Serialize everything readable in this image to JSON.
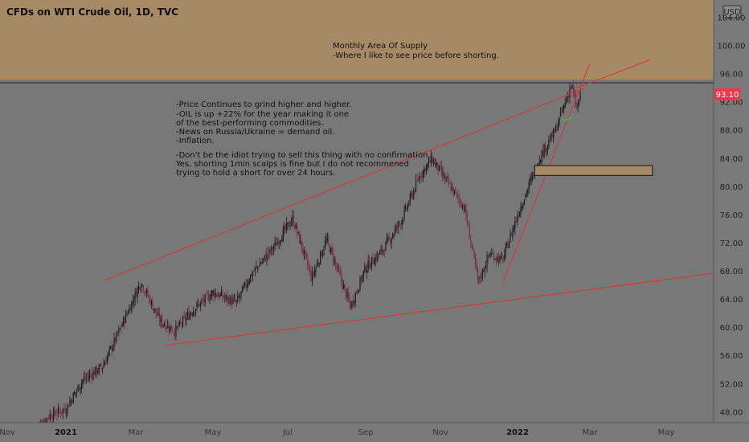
{
  "chart_title": "CFDs on WTI Crude Oil, 1D, TVC",
  "currency_label": "USD",
  "price_label": "93.10",
  "supply_zone": {
    "label_lines": [
      "Monthly Area Of Supply",
      "-Where I like to see price before shorting."
    ],
    "from_price": 95.2,
    "color": "#a68a66"
  },
  "demand_box": {
    "date_from": "2022-01-15",
    "date_to": "2022-04-20",
    "price_from": 81.6,
    "price_to": 83.0,
    "color": "#a68a66"
  },
  "notes": [
    "-Price Continues to grind higher and higher.",
    "-OIL is up +22% for the year making it one",
    "of the best-performing commodities.",
    "-News on Russia/Ukraine = demand oil.",
    "-Inflation.",
    "",
    "-Don't be the idiot trying to sell this thing with no confirmation.",
    "Yes, shorting 1min scalps is fine but I do not recommened",
    "trying to hold a short for over 24 hours."
  ],
  "colors": {
    "background": "#787878",
    "trendline": "#e03030",
    "candle_up": "#1c1c1c",
    "candle_down": "#7a2e44",
    "price_tag": "#f23645"
  },
  "chart_data": {
    "type": "candlestick",
    "title": "CFDs on WTI Crude Oil, 1D, TVC",
    "yaxis": {
      "ticks": [
        "48.00",
        "52.00",
        "56.00",
        "60.00",
        "64.00",
        "68.00",
        "72.00",
        "76.00",
        "80.00",
        "84.00",
        "88.00",
        "92.00",
        "96.00",
        "100.00",
        "104.00"
      ],
      "ylim": [
        46.5,
        106.5
      ],
      "side": "right"
    },
    "xaxis": {
      "ticks": [
        "Nov",
        "2021",
        "Mar",
        "May",
        "Jul",
        "Sep",
        "Nov",
        "2022",
        "Mar",
        "May"
      ],
      "bold_ticks": [
        "2021",
        "2022"
      ]
    },
    "last_price": 93.1,
    "approx_close_path": [
      {
        "date": "2020-12-01",
        "price": 45.5
      },
      {
        "date": "2020-12-15",
        "price": 47.5
      },
      {
        "date": "2021-01-01",
        "price": 48.5
      },
      {
        "date": "2021-01-15",
        "price": 52.5
      },
      {
        "date": "2021-02-01",
        "price": 54.5
      },
      {
        "date": "2021-02-15",
        "price": 59.5
      },
      {
        "date": "2021-03-05",
        "price": 66.5
      },
      {
        "date": "2021-03-20",
        "price": 61.0
      },
      {
        "date": "2021-04-01",
        "price": 59.5
      },
      {
        "date": "2021-04-15",
        "price": 62.5
      },
      {
        "date": "2021-05-01",
        "price": 65.0
      },
      {
        "date": "2021-05-20",
        "price": 63.5
      },
      {
        "date": "2021-06-01",
        "price": 67.5
      },
      {
        "date": "2021-06-20",
        "price": 71.5
      },
      {
        "date": "2021-07-05",
        "price": 75.5
      },
      {
        "date": "2021-07-20",
        "price": 67.0
      },
      {
        "date": "2021-08-01",
        "price": 72.5
      },
      {
        "date": "2021-08-20",
        "price": 63.0
      },
      {
        "date": "2021-09-01",
        "price": 68.5
      },
      {
        "date": "2021-09-15",
        "price": 71.0
      },
      {
        "date": "2021-10-01",
        "price": 75.5
      },
      {
        "date": "2021-10-15",
        "price": 81.5
      },
      {
        "date": "2021-10-25",
        "price": 84.0
      },
      {
        "date": "2021-11-05",
        "price": 81.0
      },
      {
        "date": "2021-11-20",
        "price": 77.0
      },
      {
        "date": "2021-12-01",
        "price": 66.5
      },
      {
        "date": "2021-12-10",
        "price": 70.5
      },
      {
        "date": "2021-12-20",
        "price": 69.5
      },
      {
        "date": "2022-01-01",
        "price": 76.0
      },
      {
        "date": "2022-01-20",
        "price": 84.5
      },
      {
        "date": "2022-02-01",
        "price": 88.0
      },
      {
        "date": "2022-02-14",
        "price": 94.5
      },
      {
        "date": "2022-02-18",
        "price": 91.0
      },
      {
        "date": "2022-02-22",
        "price": 93.1
      }
    ],
    "trendlines": [
      {
        "name": "upper channel",
        "from": {
          "date": "2021-02-01",
          "price": 66.6
        },
        "to": {
          "date": "2022-02-25",
          "price": 94.0
        }
      },
      {
        "name": "lower channel",
        "from": {
          "date": "2021-03-25",
          "price": 57.5
        },
        "to": {
          "date": "2022-06-20",
          "price": 68.0
        }
      },
      {
        "name": "steep support",
        "from": {
          "date": "2021-12-20",
          "price": 66.2
        },
        "to": {
          "date": "2022-03-01",
          "price": 97.5
        }
      },
      {
        "name": "upper extension",
        "from": {
          "date": "2022-02-18",
          "price": 94.0
        },
        "to": {
          "date": "2022-04-18",
          "price": 98.0
        }
      }
    ]
  }
}
